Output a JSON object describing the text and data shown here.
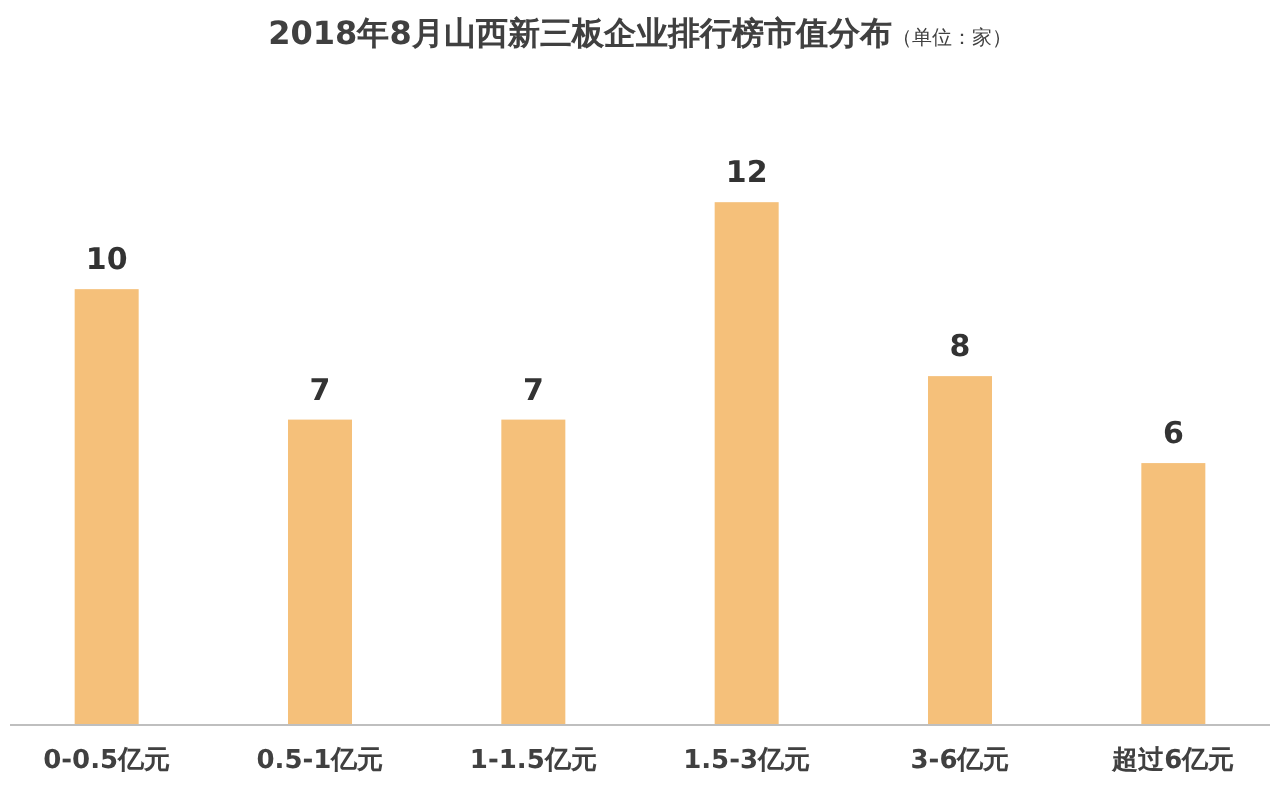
{
  "chart_data": {
    "type": "bar",
    "title": "2018年8月山西新三板企业排行榜市值分布",
    "subtitle": "（单位：家）",
    "categories": [
      "0-0.5亿元",
      "0.5-1亿元",
      "1-1.5亿元",
      "1.5-3亿元",
      "3-6亿元",
      "超过6亿元"
    ],
    "values": [
      10,
      7,
      7,
      12,
      8,
      6
    ],
    "color": "#f5c07a",
    "data_labels": true
  }
}
